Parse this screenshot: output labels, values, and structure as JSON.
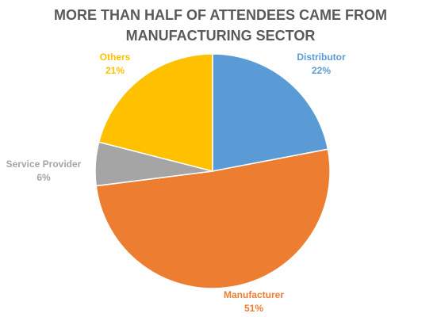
{
  "chart_data": {
    "type": "pie",
    "title_lines": [
      "MORE THAN HALF OF ATTENDEES CAME FROM",
      "MANUFACTURING SECTOR"
    ],
    "categories": [
      "Distributor",
      "Manufacturer",
      "Service Provider",
      "Others"
    ],
    "values": [
      22,
      51,
      6,
      21
    ],
    "value_labels": [
      "22%",
      "51%",
      "6%",
      "21%"
    ],
    "colors": [
      "#5b9bd5",
      "#ed7d31",
      "#a5a5a5",
      "#ffc000"
    ]
  }
}
